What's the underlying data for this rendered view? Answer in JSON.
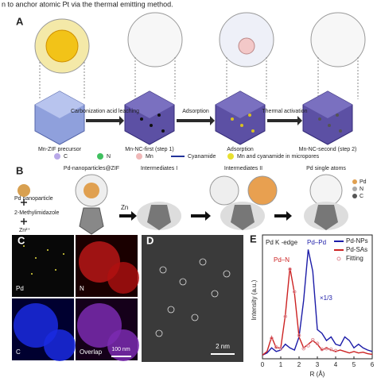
{
  "caption": "n to anchor atomic Pt via the thermal emitting method.",
  "panels": {
    "A": {
      "label": "A",
      "stages": [
        "Mn-ZIF precursor",
        "Mn-NC-first (step 1)",
        "Adsorption",
        "Mn-NC-second (step 2)"
      ],
      "arrows": [
        "Carbonization acid leaching",
        "Adsorption",
        "Thermal activation"
      ],
      "legend": [
        "C",
        "N",
        "Mn",
        "Cyanamide",
        "Mn and cyanamide in micropores"
      ]
    },
    "B": {
      "label": "B",
      "stages": [
        "Pd-nanoparticles@ZIF",
        "Intermediates I",
        "Intermediates II",
        "Pd single atoms"
      ],
      "reagents": [
        "Pd nanoparticle",
        "2-Methylimidazole",
        "Zn²⁺"
      ],
      "arrow": "Zn",
      "legend": [
        "Pd",
        "N",
        "C"
      ]
    },
    "C": {
      "label": "C",
      "maps": [
        "Pd",
        "N",
        "C",
        "Overlap"
      ],
      "scale_bar": "100 nm"
    },
    "D": {
      "label": "D",
      "scale_bar": "2 nm"
    },
    "E": {
      "label": "E"
    }
  },
  "chart_data": {
    "type": "line",
    "x_label": "R (Å)",
    "y_label": "Intensity (a.u.)",
    "annotations": [
      "Pd K -edge",
      "Pd–Pd",
      "Pd–N",
      "×1/3"
    ],
    "x": [
      0,
      0.25,
      0.5,
      0.75,
      1,
      1.25,
      1.5,
      1.75,
      2,
      2.25,
      2.5,
      2.75,
      3,
      3.25,
      3.5,
      3.75,
      4,
      4.25,
      4.5,
      4.75,
      5,
      5.25,
      5.5,
      5.75,
      6
    ],
    "series": [
      {
        "name": "Pd-NPs",
        "color": "#1c1ca8",
        "style": "line",
        "values": [
          0.5,
          0.8,
          1.5,
          1.0,
          1.2,
          2.0,
          1.5,
          1.2,
          3.0,
          8.0,
          15.0,
          12.0,
          4.0,
          3.5,
          2.5,
          3.0,
          2.0,
          1.8,
          3.0,
          2.5,
          1.5,
          2.0,
          1.5,
          1.2,
          1.0
        ]
      },
      {
        "name": "Pd-SAs",
        "color": "#cc2222",
        "style": "line",
        "values": [
          0.5,
          1.0,
          3.0,
          1.5,
          1.5,
          6.0,
          12.5,
          9.0,
          3.0,
          1.5,
          2.0,
          2.5,
          2.0,
          1.2,
          1.5,
          1.2,
          1.0,
          1.2,
          1.0,
          0.8,
          1.0,
          0.8,
          0.9,
          0.7,
          0.6
        ]
      },
      {
        "name": "Fitting",
        "color": "#e0909a",
        "style": "dots",
        "values": [
          null,
          null,
          2.8,
          1.6,
          1.4,
          5.8,
          12.3,
          9.2,
          3.2,
          1.4,
          1.8,
          2.6,
          2.1,
          1.3,
          1.4,
          1.3,
          1.1,
          null,
          null,
          null,
          null,
          null,
          null,
          null,
          null
        ]
      }
    ],
    "xlim": [
      0,
      6
    ],
    "ylim": [
      0,
      17
    ],
    "xticks": [
      0,
      1,
      2,
      3,
      4,
      5,
      6
    ],
    "legend": "upper right"
  }
}
